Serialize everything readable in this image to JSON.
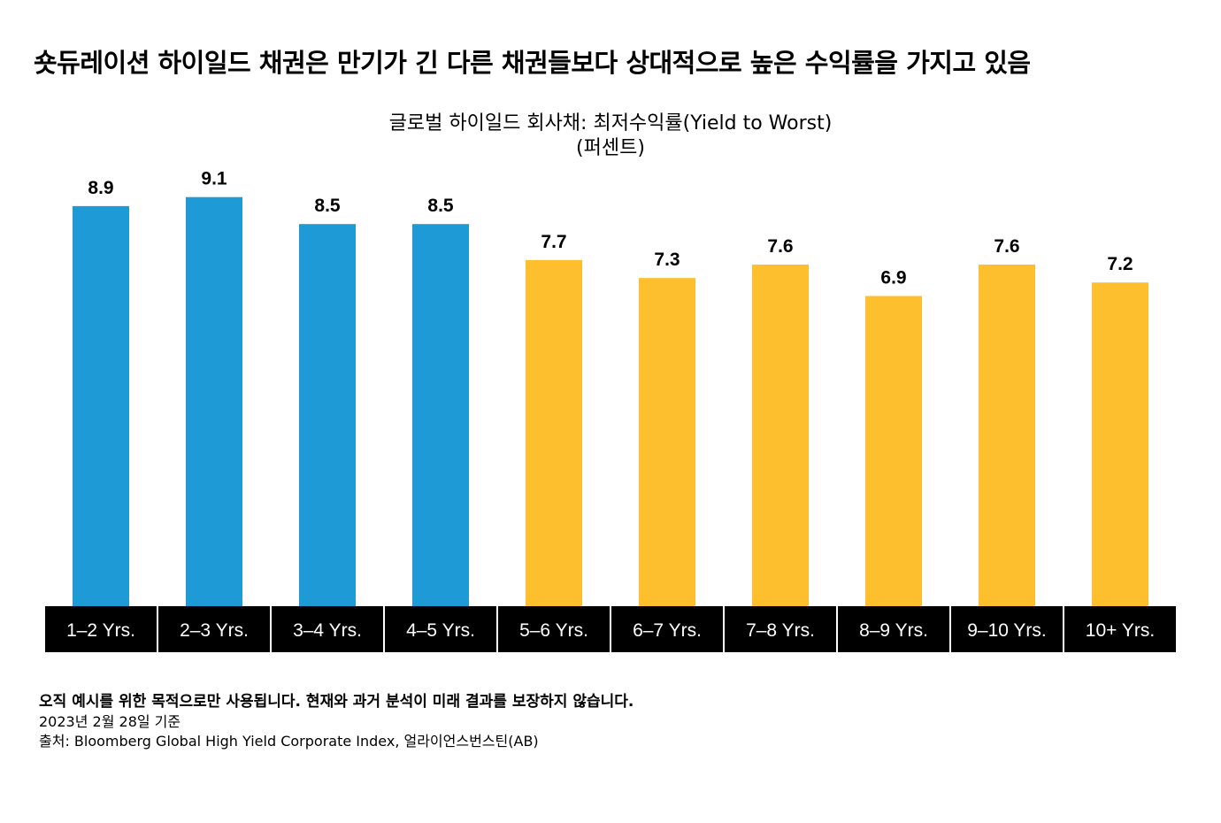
{
  "title": "숏듀레이션 하이일드 채권은 만기가 긴 다른 채권들보다 상대적으로 높은 수익률을 가지고 있음",
  "chart_data": {
    "type": "bar",
    "title": "글로벌 하이일드 회사채: 최저수익률(Yield to Worst)",
    "subtitle": "(퍼센트)",
    "categories": [
      "1–2 Yrs.",
      "2–3 Yrs.",
      "3–4 Yrs.",
      "4–5 Yrs.",
      "5–6 Yrs.",
      "6–7 Yrs.",
      "7–8 Yrs.",
      "8–9 Yrs.",
      "9–10 Yrs.",
      "10+ Yrs."
    ],
    "values": [
      8.9,
      9.1,
      8.5,
      8.5,
      7.7,
      7.3,
      7.6,
      6.9,
      7.6,
      7.2
    ],
    "data_labels": [
      "8.9",
      "9.1",
      "8.5",
      "8.5",
      "7.7",
      "7.3",
      "7.6",
      "6.9",
      "7.6",
      "7.2"
    ],
    "bar_colors": [
      "#1E9BD7",
      "#1E9BD7",
      "#1E9BD7",
      "#1E9BD7",
      "#FDBF2D",
      "#FDBF2D",
      "#FDBF2D",
      "#FDBF2D",
      "#FDBF2D",
      "#FDBF2D"
    ],
    "ylim": [
      0,
      10
    ],
    "grid": false,
    "y_axis_shown": false
  },
  "footnotes": {
    "disclaimer": "오직 예시를 위한 목적으로만 사용됩니다. 현재와 과거 분석이 미래 결과를 보장하지 않습니다.",
    "date": "2023년 2월 28일 기준",
    "source": "출처: Bloomberg Global High Yield Corporate Index, 얼라이언스번스틴(AB)"
  }
}
